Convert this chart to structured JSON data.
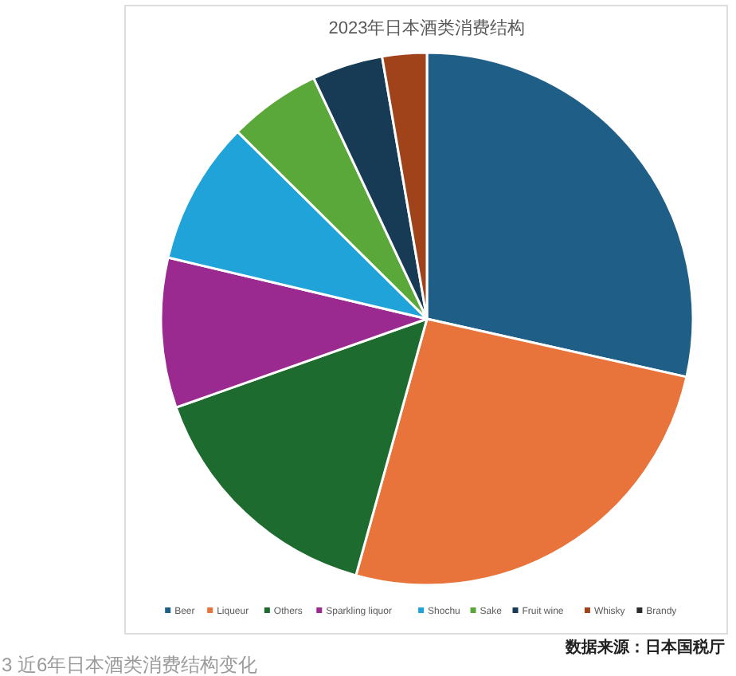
{
  "chart_data": {
    "type": "pie",
    "title": "2023年日本酒类消费结构",
    "categories": [
      "Beer",
      "Liqueur",
      "Others",
      "Sparkling liquor",
      "Shochu",
      "Sake",
      "Fruit wine",
      "Whisky",
      "Brandy"
    ],
    "values": [
      28.5,
      25.8,
      15.3,
      9.1,
      8.7,
      5.6,
      4.3,
      2.7,
      0
    ],
    "colors": [
      "#1f5f87",
      "#e8743b",
      "#1d6b2e",
      "#9a2a8f",
      "#1fa3d8",
      "#5aa83a",
      "#173a55",
      "#a0421a",
      "#2b2b2b"
    ],
    "legend": "bottom",
    "annotations": [
      "数据来源：日本国税厅",
      "3 近6年日本酒类消费结构变化"
    ]
  }
}
